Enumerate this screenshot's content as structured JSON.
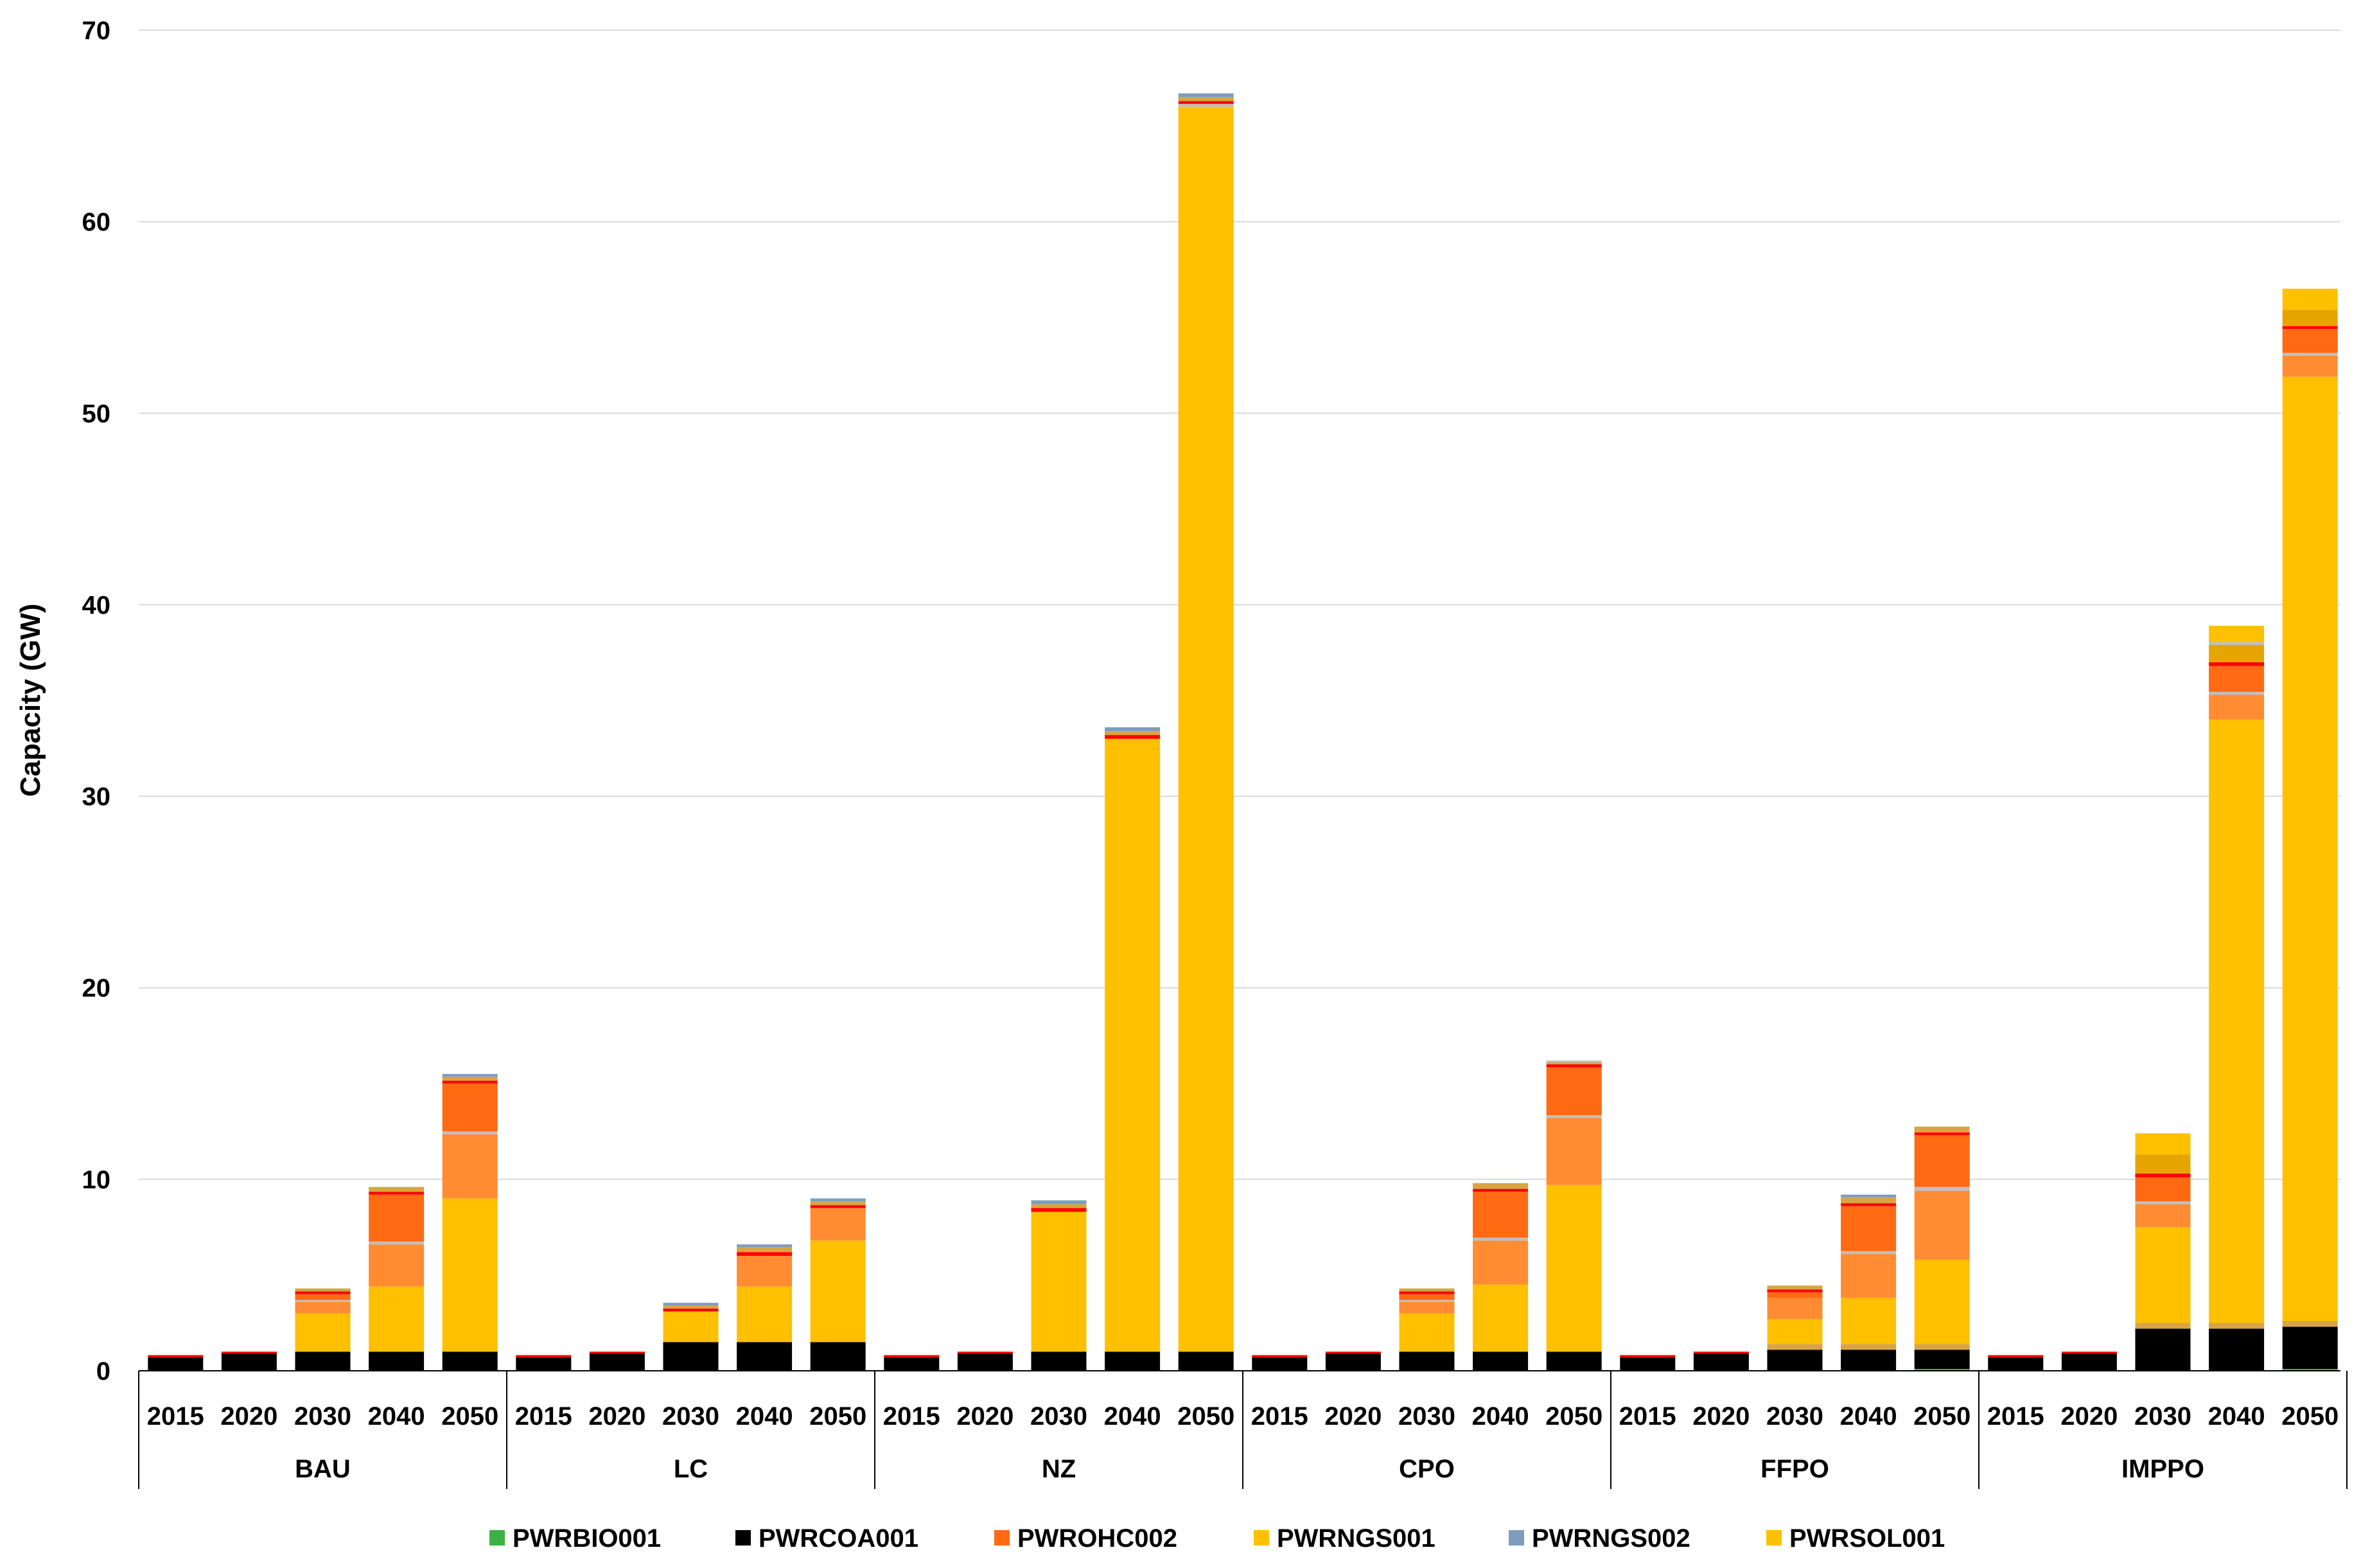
{
  "chart_data": {
    "type": "bar",
    "stacked": true,
    "ylabel": "Capacity (GW)",
    "xlabel": "",
    "ylim": [
      0,
      70
    ],
    "yticks": [
      0,
      10,
      20,
      30,
      40,
      50,
      60,
      70
    ],
    "gridlines": true,
    "legend_position": "bottom",
    "groups": [
      "BAU",
      "LC",
      "NZ",
      "CPO",
      "FFPO",
      "IMPPO"
    ],
    "years": [
      "2015",
      "2020",
      "2030",
      "2040",
      "2050"
    ],
    "legend": [
      {
        "name": "PWRBIO001",
        "color": "#3cb043"
      },
      {
        "name": "PWRCOA001",
        "color": "#000000"
      },
      {
        "name": "PWROHC002",
        "color": "#ff6a13"
      },
      {
        "name": "PWRNGS001",
        "color": "#ffc000"
      },
      {
        "name": "PWRNGS002",
        "color": "#7f9cbf"
      },
      {
        "name": "PWRSOL001",
        "color": "#ffc000"
      }
    ],
    "segment_colors": {
      "coal": "#000000",
      "solar": "#ffc000",
      "orange_light": "#ff8c33",
      "orange": "#ff6a13",
      "red": "#ff0000",
      "tan": "#d9a441",
      "gold_dark": "#e6a400",
      "blue": "#7f9cbf",
      "gray": "#bfbfbf",
      "green": "#3cb043"
    },
    "bars": [
      {
        "group": "BAU",
        "year": "2015",
        "segments": [
          {
            "k": "coal",
            "v": 0.7
          },
          {
            "k": "red",
            "v": 0.12
          }
        ]
      },
      {
        "group": "BAU",
        "year": "2020",
        "segments": [
          {
            "k": "coal",
            "v": 0.9
          },
          {
            "k": "red",
            "v": 0.1
          }
        ]
      },
      {
        "group": "BAU",
        "year": "2030",
        "segments": [
          {
            "k": "coal",
            "v": 1.0
          },
          {
            "k": "solar",
            "v": 2.0
          },
          {
            "k": "orange_light",
            "v": 0.6
          },
          {
            "k": "gray",
            "v": 0.1
          },
          {
            "k": "orange",
            "v": 0.3
          },
          {
            "k": "red",
            "v": 0.15
          },
          {
            "k": "tan",
            "v": 0.15
          }
        ]
      },
      {
        "group": "BAU",
        "year": "2040",
        "segments": [
          {
            "k": "coal",
            "v": 1.0
          },
          {
            "k": "solar",
            "v": 3.4
          },
          {
            "k": "orange_light",
            "v": 2.2
          },
          {
            "k": "gray",
            "v": 0.15
          },
          {
            "k": "orange",
            "v": 2.45
          },
          {
            "k": "red",
            "v": 0.15
          },
          {
            "k": "tan",
            "v": 0.25
          }
        ]
      },
      {
        "group": "BAU",
        "year": "2050",
        "segments": [
          {
            "k": "coal",
            "v": 1.0
          },
          {
            "k": "solar",
            "v": 8.0
          },
          {
            "k": "orange_light",
            "v": 3.35
          },
          {
            "k": "gray",
            "v": 0.15
          },
          {
            "k": "orange",
            "v": 2.5
          },
          {
            "k": "red",
            "v": 0.15
          },
          {
            "k": "tan",
            "v": 0.2
          },
          {
            "k": "blue",
            "v": 0.15
          }
        ]
      },
      {
        "group": "LC",
        "year": "2015",
        "segments": [
          {
            "k": "coal",
            "v": 0.7
          },
          {
            "k": "red",
            "v": 0.12
          }
        ]
      },
      {
        "group": "LC",
        "year": "2020",
        "segments": [
          {
            "k": "coal",
            "v": 0.9
          },
          {
            "k": "red",
            "v": 0.1
          }
        ]
      },
      {
        "group": "LC",
        "year": "2030",
        "segments": [
          {
            "k": "coal",
            "v": 1.5
          },
          {
            "k": "solar",
            "v": 1.6
          },
          {
            "k": "red",
            "v": 0.15
          },
          {
            "k": "tan",
            "v": 0.15
          },
          {
            "k": "blue",
            "v": 0.15
          }
        ]
      },
      {
        "group": "LC",
        "year": "2040",
        "segments": [
          {
            "k": "coal",
            "v": 1.5
          },
          {
            "k": "solar",
            "v": 2.9
          },
          {
            "k": "orange_light",
            "v": 1.6
          },
          {
            "k": "red",
            "v": 0.2
          },
          {
            "k": "tan",
            "v": 0.25
          },
          {
            "k": "blue",
            "v": 0.15
          }
        ]
      },
      {
        "group": "LC",
        "year": "2050",
        "segments": [
          {
            "k": "coal",
            "v": 1.5
          },
          {
            "k": "solar",
            "v": 5.3
          },
          {
            "k": "orange_light",
            "v": 1.7
          },
          {
            "k": "red",
            "v": 0.15
          },
          {
            "k": "tan",
            "v": 0.2
          },
          {
            "k": "blue",
            "v": 0.15
          }
        ]
      },
      {
        "group": "NZ",
        "year": "2015",
        "segments": [
          {
            "k": "coal",
            "v": 0.7
          },
          {
            "k": "red",
            "v": 0.12
          }
        ]
      },
      {
        "group": "NZ",
        "year": "2020",
        "segments": [
          {
            "k": "coal",
            "v": 0.9
          },
          {
            "k": "red",
            "v": 0.1
          }
        ]
      },
      {
        "group": "NZ",
        "year": "2030",
        "segments": [
          {
            "k": "coal",
            "v": 1.0
          },
          {
            "k": "solar",
            "v": 7.3
          },
          {
            "k": "red",
            "v": 0.2
          },
          {
            "k": "tan",
            "v": 0.2
          },
          {
            "k": "blue",
            "v": 0.2
          }
        ]
      },
      {
        "group": "NZ",
        "year": "2040",
        "segments": [
          {
            "k": "coal",
            "v": 1.0
          },
          {
            "k": "solar",
            "v": 32.0
          },
          {
            "k": "red",
            "v": 0.2
          },
          {
            "k": "tan",
            "v": 0.2
          },
          {
            "k": "blue",
            "v": 0.2
          }
        ]
      },
      {
        "group": "NZ",
        "year": "2050",
        "segments": [
          {
            "k": "coal",
            "v": 1.0
          },
          {
            "k": "solar",
            "v": 65.0
          },
          {
            "k": "gray",
            "v": 0.15
          },
          {
            "k": "red",
            "v": 0.15
          },
          {
            "k": "tan",
            "v": 0.2
          },
          {
            "k": "blue",
            "v": 0.2
          }
        ]
      },
      {
        "group": "CPO",
        "year": "2015",
        "segments": [
          {
            "k": "coal",
            "v": 0.7
          },
          {
            "k": "red",
            "v": 0.12
          }
        ]
      },
      {
        "group": "CPO",
        "year": "2020",
        "segments": [
          {
            "k": "coal",
            "v": 0.9
          },
          {
            "k": "red",
            "v": 0.1
          }
        ]
      },
      {
        "group": "CPO",
        "year": "2030",
        "segments": [
          {
            "k": "coal",
            "v": 1.0
          },
          {
            "k": "solar",
            "v": 2.0
          },
          {
            "k": "orange_light",
            "v": 0.6
          },
          {
            "k": "gray",
            "v": 0.1
          },
          {
            "k": "orange",
            "v": 0.3
          },
          {
            "k": "red",
            "v": 0.15
          },
          {
            "k": "tan",
            "v": 0.15
          }
        ]
      },
      {
        "group": "CPO",
        "year": "2040",
        "segments": [
          {
            "k": "coal",
            "v": 1.0
          },
          {
            "k": "solar",
            "v": 3.5
          },
          {
            "k": "orange_light",
            "v": 2.3
          },
          {
            "k": "gray",
            "v": 0.15
          },
          {
            "k": "orange",
            "v": 2.4
          },
          {
            "k": "red",
            "v": 0.15
          },
          {
            "k": "tan",
            "v": 0.3
          }
        ]
      },
      {
        "group": "CPO",
        "year": "2050",
        "segments": [
          {
            "k": "coal",
            "v": 1.0
          },
          {
            "k": "solar",
            "v": 8.7
          },
          {
            "k": "orange_light",
            "v": 3.5
          },
          {
            "k": "gray",
            "v": 0.15
          },
          {
            "k": "orange",
            "v": 2.5
          },
          {
            "k": "red",
            "v": 0.15
          },
          {
            "k": "tan",
            "v": 0.1
          },
          {
            "k": "gray",
            "v": 0.1
          }
        ]
      },
      {
        "group": "FFPO",
        "year": "2015",
        "segments": [
          {
            "k": "coal",
            "v": 0.7
          },
          {
            "k": "red",
            "v": 0.12
          }
        ]
      },
      {
        "group": "FFPO",
        "year": "2020",
        "segments": [
          {
            "k": "coal",
            "v": 0.9
          },
          {
            "k": "red",
            "v": 0.1
          }
        ]
      },
      {
        "group": "FFPO",
        "year": "2030",
        "segments": [
          {
            "k": "coal",
            "v": 1.1
          },
          {
            "k": "tan",
            "v": 0.3
          },
          {
            "k": "solar",
            "v": 1.3
          },
          {
            "k": "orange_light",
            "v": 1.1
          },
          {
            "k": "orange",
            "v": 0.3
          },
          {
            "k": "red",
            "v": 0.15
          },
          {
            "k": "tan",
            "v": 0.2
          }
        ]
      },
      {
        "group": "FFPO",
        "year": "2040",
        "segments": [
          {
            "k": "coal",
            "v": 1.1
          },
          {
            "k": "tan",
            "v": 0.3
          },
          {
            "k": "solar",
            "v": 2.4
          },
          {
            "k": "orange_light",
            "v": 2.3
          },
          {
            "k": "gray",
            "v": 0.15
          },
          {
            "k": "orange",
            "v": 2.35
          },
          {
            "k": "red",
            "v": 0.15
          },
          {
            "k": "tan",
            "v": 0.3
          },
          {
            "k": "blue",
            "v": 0.15
          }
        ]
      },
      {
        "group": "FFPO",
        "year": "2050",
        "segments": [
          {
            "k": "green",
            "v": 0.1
          },
          {
            "k": "coal",
            "v": 1.0
          },
          {
            "k": "tan",
            "v": 0.3
          },
          {
            "k": "solar",
            "v": 4.4
          },
          {
            "k": "orange_light",
            "v": 3.6
          },
          {
            "k": "gray",
            "v": 0.2
          },
          {
            "k": "orange",
            "v": 2.7
          },
          {
            "k": "red",
            "v": 0.15
          },
          {
            "k": "tan",
            "v": 0.3
          }
        ]
      },
      {
        "group": "IMPPO",
        "year": "2015",
        "segments": [
          {
            "k": "coal",
            "v": 0.7
          },
          {
            "k": "red",
            "v": 0.12
          }
        ]
      },
      {
        "group": "IMPPO",
        "year": "2020",
        "segments": [
          {
            "k": "coal",
            "v": 0.9
          },
          {
            "k": "red",
            "v": 0.1
          }
        ]
      },
      {
        "group": "IMPPO",
        "year": "2030",
        "segments": [
          {
            "k": "coal",
            "v": 2.2
          },
          {
            "k": "tan",
            "v": 0.3
          },
          {
            "k": "solar",
            "v": 5.0
          },
          {
            "k": "orange_light",
            "v": 1.2
          },
          {
            "k": "gray",
            "v": 0.15
          },
          {
            "k": "orange",
            "v": 1.25
          },
          {
            "k": "red",
            "v": 0.2
          },
          {
            "k": "gold_dark",
            "v": 1.0
          },
          {
            "k": "solar",
            "v": 1.1
          }
        ]
      },
      {
        "group": "IMPPO",
        "year": "2040",
        "segments": [
          {
            "k": "coal",
            "v": 2.2
          },
          {
            "k": "tan",
            "v": 0.3
          },
          {
            "k": "solar",
            "v": 31.5
          },
          {
            "k": "orange_light",
            "v": 1.3
          },
          {
            "k": "gray",
            "v": 0.15
          },
          {
            "k": "orange",
            "v": 1.35
          },
          {
            "k": "red",
            "v": 0.2
          },
          {
            "k": "gold_dark",
            "v": 0.9
          },
          {
            "k": "gray",
            "v": 0.15
          },
          {
            "k": "solar",
            "v": 0.85
          }
        ]
      },
      {
        "group": "IMPPO",
        "year": "2050",
        "segments": [
          {
            "k": "green",
            "v": 0.1
          },
          {
            "k": "coal",
            "v": 2.2
          },
          {
            "k": "tan",
            "v": 0.3
          },
          {
            "k": "solar",
            "v": 49.3
          },
          {
            "k": "orange_light",
            "v": 1.1
          },
          {
            "k": "gray",
            "v": 0.15
          },
          {
            "k": "orange",
            "v": 1.25
          },
          {
            "k": "red",
            "v": 0.15
          },
          {
            "k": "gold_dark",
            "v": 0.85
          },
          {
            "k": "solar",
            "v": 1.1
          }
        ]
      }
    ]
  }
}
